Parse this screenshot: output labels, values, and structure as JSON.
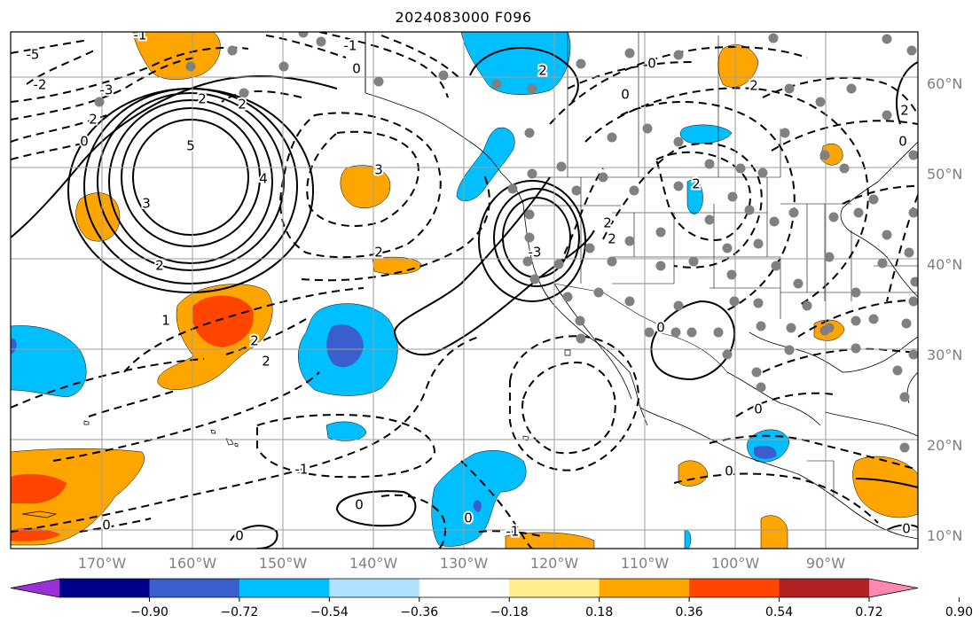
{
  "title": "2024083000 F096",
  "lat_labels": [
    "60°N",
    "50°N",
    "40°N",
    "30°N",
    "20°N",
    "10°N"
  ],
  "lon_labels": [
    "170°W",
    "160°W",
    "150°W",
    "140°W",
    "130°W",
    "120°W",
    "110°W",
    "100°W",
    "90°W"
  ],
  "contour_labels": [
    "5",
    "4",
    "3",
    "2",
    "1",
    "0",
    "-1",
    "-2",
    "-3",
    "-5"
  ],
  "colorbar": {
    "tick_labels": [
      "−0.90",
      "−0.72",
      "−0.54",
      "−0.36",
      "−0.18",
      "0.18",
      "0.36",
      "0.54",
      "0.72",
      "0.90"
    ],
    "colors": [
      "#9b30d9",
      "#00008b",
      "#3a5fcd",
      "#00bfff",
      "#b0e2ff",
      "#ffffff",
      "#ffec8b",
      "#ffa500",
      "#ff4500",
      "#b22222",
      "#ff88b0"
    ]
  },
  "colors": {
    "land_line": "#000000",
    "grid": "#9e9e9e",
    "station": "#808080"
  }
}
